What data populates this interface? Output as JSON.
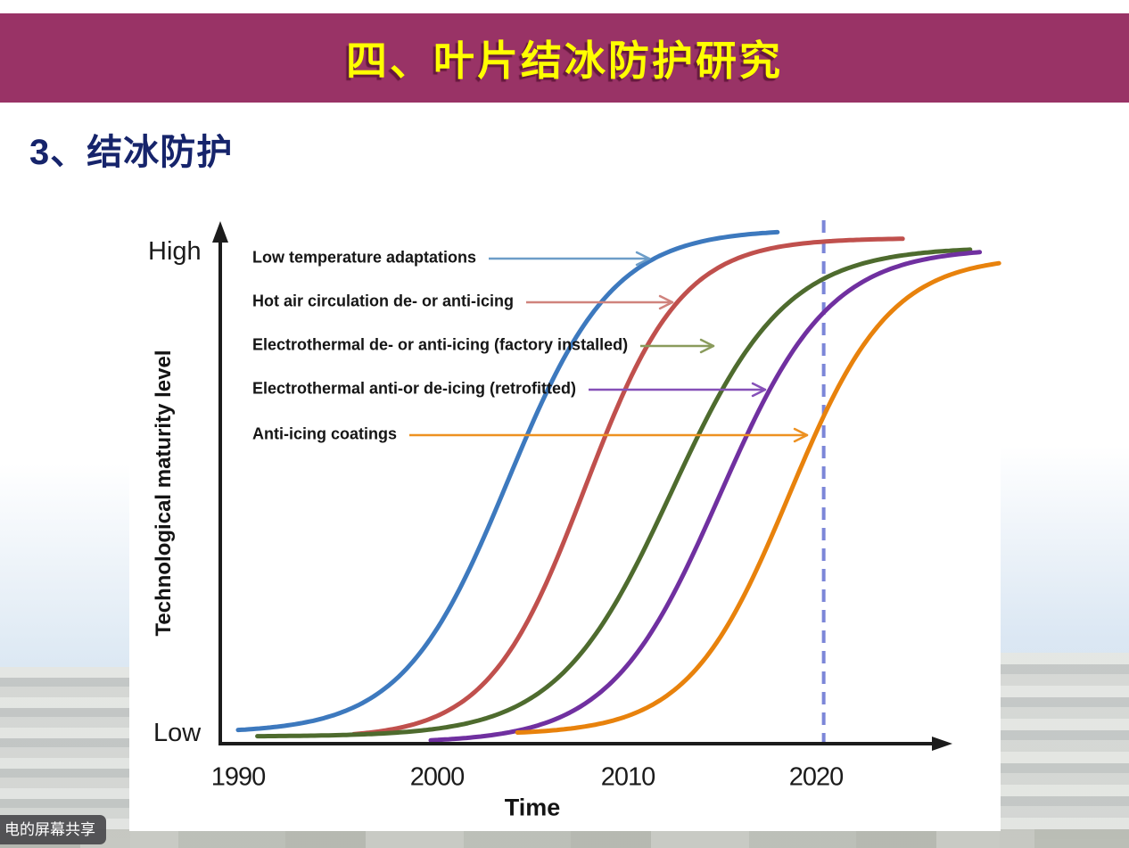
{
  "header": {
    "title": "四、叶片结冰防护研究",
    "bg_color": "#993366",
    "text_color": "#FFFF00"
  },
  "section": {
    "subtitle": "3、结冰防护",
    "color": "#16246B"
  },
  "toast": {
    "text": "电的屏幕共享"
  },
  "chart_data": {
    "type": "line",
    "title": "",
    "xlabel": "Time",
    "ylabel": "Technological maturity level",
    "y_axis": {
      "high_label": "High",
      "low_label": "Low",
      "scale": "qualitative: Low to High"
    },
    "x_ticks": [
      "1990",
      "2000",
      "2010",
      "2020"
    ],
    "x_range": [
      1989,
      2030
    ],
    "grid": false,
    "legend_position": "inline labels upper-left with arrows pointing to curves",
    "reference_line": {
      "type": "vertical-dashed",
      "x": 2020.4,
      "color": "#7C86D8"
    },
    "series": [
      {
        "name": "Low temperature adaptations",
        "color": "#3D79BE",
        "arrow_color": "#6D9DC8",
        "milestones": {
          "start": 1990,
          "takeoff": 1998,
          "midpoint": 2004,
          "plateau": 2010,
          "end": 2018
        },
        "maturity": {
          "start": "Low",
          "end": "High"
        }
      },
      {
        "name": "Hot air circulation de- or anti-icing",
        "color": "#C0504D",
        "arrow_color": "#D0837D",
        "milestones": {
          "start": 1996,
          "takeoff": 2004,
          "midpoint": 2008,
          "plateau": 2015,
          "end": 2024.5
        },
        "maturity": {
          "start": "Low",
          "end": "High"
        }
      },
      {
        "name": "Electrothermal de- or anti-icing (factory installed)",
        "color": "#4E6B2E",
        "arrow_color": "#8A9B5C",
        "milestones": {
          "start": 1991,
          "takeoff": 2006,
          "midpoint": 2012.5,
          "plateau": 2019,
          "end": 2028
        },
        "maturity": {
          "start": "Low",
          "end": "High"
        }
      },
      {
        "name": "Electrothermal anti-or de-icing (retrofitted)",
        "color": "#7030A0",
        "arrow_color": "#8650B8",
        "milestones": {
          "start": 2000,
          "takeoff": 2009,
          "midpoint": 2015,
          "plateau": 2021.5,
          "end": 2028.5
        },
        "maturity": {
          "start": "Low",
          "end": "High"
        }
      },
      {
        "name": "Anti-icing coatings",
        "color": "#E8820C",
        "arrow_color": "#ED9121",
        "milestones": {
          "start": 2004.5,
          "takeoff": 2013,
          "midpoint": 2018.6,
          "plateau": 2024.5,
          "end": 2029.5
        },
        "maturity": {
          "start": "Low",
          "end": "High"
        }
      }
    ]
  }
}
